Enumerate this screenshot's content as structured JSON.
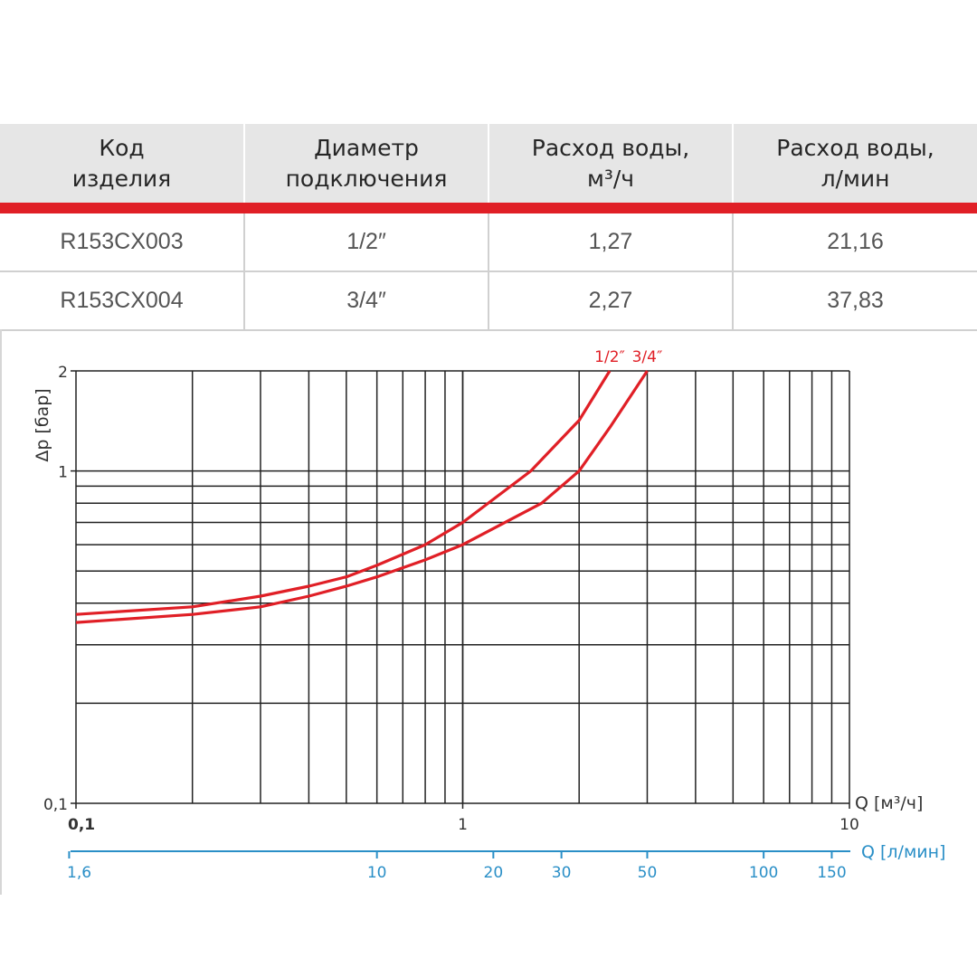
{
  "table": {
    "headers": [
      [
        "Код",
        "изделия"
      ],
      [
        "Диаметр",
        "подключения"
      ],
      [
        "Расход воды,",
        "м³/ч"
      ],
      [
        "Расход воды,",
        "л/мин"
      ]
    ],
    "rows": [
      [
        "R153CX003",
        "1/2″",
        "1,27",
        "21,16"
      ],
      [
        "R153CX004",
        "3/4″",
        "2,27",
        "37,83"
      ]
    ]
  },
  "chart_data": {
    "type": "line",
    "x_scale": "log",
    "y_scale": "log",
    "xlim": [
      0.1,
      10
    ],
    "ylim": [
      0.1,
      2
    ],
    "xlabel": "Q [м³/ч]",
    "ylabel": "Δp [бар]",
    "x_ticks": [
      {
        "value": 0.1,
        "label": "0,1",
        "bold": true
      },
      {
        "value": 1,
        "label": "1",
        "bold": false
      },
      {
        "value": 10,
        "label": "10",
        "bold": false
      }
    ],
    "y_ticks": [
      {
        "value": 0.1,
        "label": "0,1"
      },
      {
        "value": 1,
        "label": "1"
      },
      {
        "value": 2,
        "label": "2"
      }
    ],
    "secondary_axis": {
      "label": "Q [л/мин]",
      "ticks": [
        {
          "value": 1.6,
          "label": "1,6"
        },
        {
          "value": 10,
          "label": "10"
        },
        {
          "value": 20,
          "label": "20"
        },
        {
          "value": 30,
          "label": "30"
        },
        {
          "value": 50,
          "label": "50"
        },
        {
          "value": 100,
          "label": "100"
        },
        {
          "value": 150,
          "label": "150"
        }
      ]
    },
    "grid": true,
    "colors": {
      "series": "#e01f26",
      "secondary_axis": "#2a8fc7",
      "grid": "#222222",
      "text": "#333333"
    },
    "series": [
      {
        "name": "1/2″",
        "x": [
          0.1,
          0.2,
          0.3,
          0.4,
          0.5,
          0.6,
          0.8,
          1.0,
          1.5,
          2.0,
          2.4
        ],
        "y": [
          0.37,
          0.39,
          0.42,
          0.45,
          0.48,
          0.52,
          0.6,
          0.7,
          1.0,
          1.42,
          2.0
        ]
      },
      {
        "name": "3/4″",
        "x": [
          0.1,
          0.2,
          0.3,
          0.4,
          0.5,
          0.6,
          0.8,
          1.0,
          1.6,
          2.0,
          2.4,
          3.0
        ],
        "y": [
          0.35,
          0.37,
          0.39,
          0.42,
          0.45,
          0.48,
          0.54,
          0.6,
          0.8,
          1.0,
          1.35,
          2.0
        ]
      }
    ]
  }
}
